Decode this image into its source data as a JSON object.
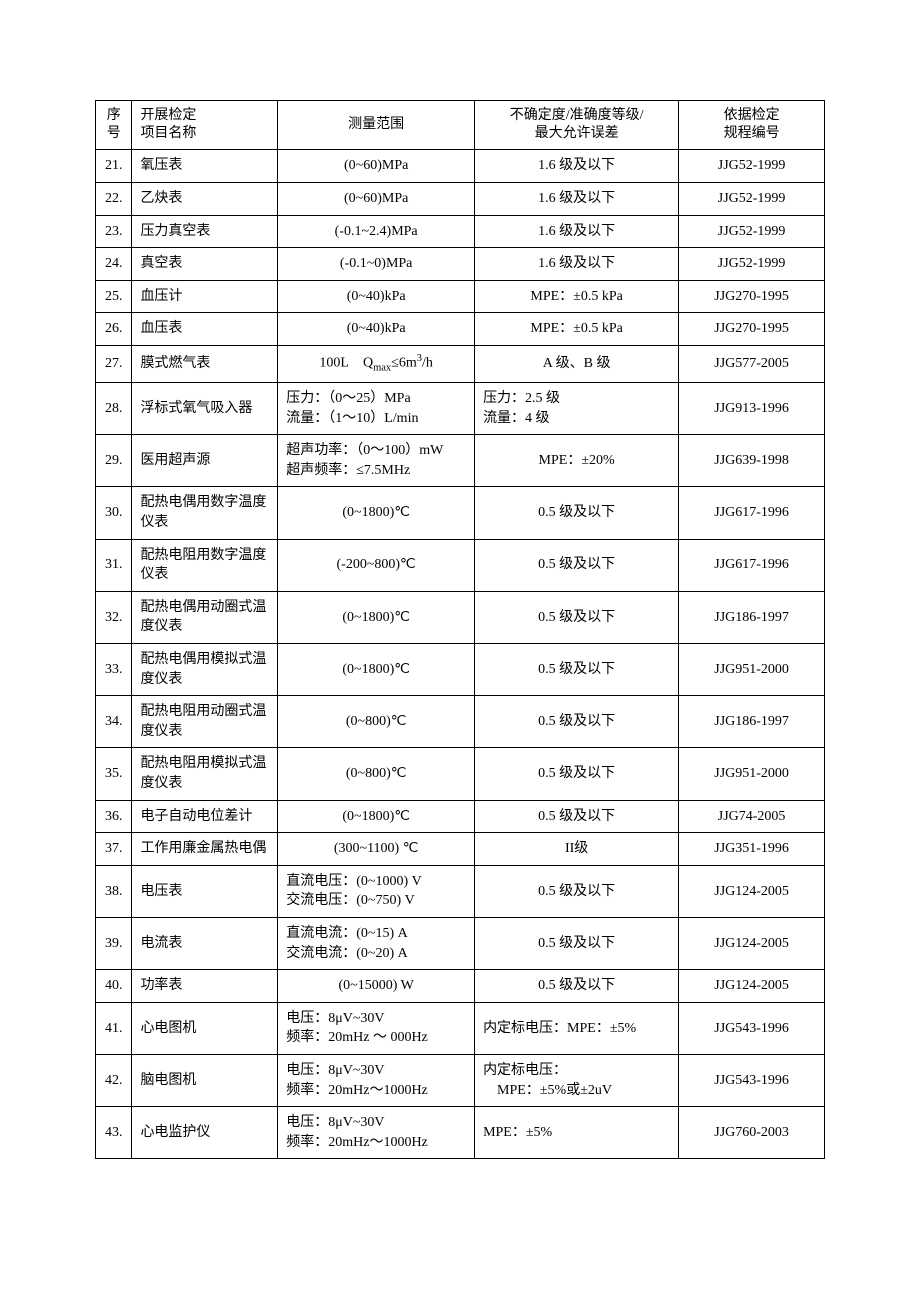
{
  "table": {
    "headers": {
      "seq": "序号",
      "name": "开展检定\n项目名称",
      "range": "测量范围",
      "accuracy": "不确定度/准确度等级/\n最大允许误差",
      "standard": "依据检定\n规程编号"
    },
    "rows": [
      {
        "seq": "21.",
        "name": "氧压表",
        "range": "(0~60)MPa",
        "range_align": "center",
        "accuracy": "1.6 级及以下",
        "accuracy_align": "center",
        "standard": "JJG52-1999"
      },
      {
        "seq": "22.",
        "name": "乙炔表",
        "range": "(0~60)MPa",
        "range_align": "center",
        "accuracy": "1.6 级及以下",
        "accuracy_align": "center",
        "standard": "JJG52-1999"
      },
      {
        "seq": "23.",
        "name": "压力真空表",
        "range": "(-0.1~2.4)MPa",
        "range_align": "center",
        "accuracy": "1.6 级及以下",
        "accuracy_align": "center",
        "standard": "JJG52-1999"
      },
      {
        "seq": "24.",
        "name": "真空表",
        "range": "(-0.1~0)MPa",
        "range_align": "center",
        "accuracy": "1.6 级及以下",
        "accuracy_align": "center",
        "standard": "JJG52-1999"
      },
      {
        "seq": "25.",
        "name": "血压计",
        "range": "(0~40)kPa",
        "range_align": "center",
        "accuracy": "MPE：±0.5 kPa",
        "accuracy_align": "center",
        "standard": "JJG270-1995"
      },
      {
        "seq": "26.",
        "name": "血压表",
        "range": "(0~40)kPa",
        "range_align": "center",
        "accuracy": "MPE：±0.5 kPa",
        "accuracy_align": "center",
        "standard": "JJG270-1995"
      },
      {
        "seq": "27.",
        "name": "膜式燃气表",
        "range": "100L　　Qmax≤6m³/h",
        "range_align": "center",
        "accuracy": "A 级、B 级",
        "accuracy_align": "center",
        "standard": "JJG577-2005",
        "has_sub": true
      },
      {
        "seq": "28.",
        "name": "浮标式氧气吸入器",
        "range": "压力：（0～25）MPa\n流量：（1～10）L/min",
        "range_align": "left",
        "accuracy": "压力：2.5 级\n流量：4 级",
        "accuracy_align": "left",
        "standard": "JJG913-1996"
      },
      {
        "seq": "29.",
        "name": "医用超声源",
        "range": "超声功率：（0～100）mW\n超声频率：≤7.5MHz",
        "range_align": "left",
        "accuracy": "MPE：±20%",
        "accuracy_align": "center",
        "standard": "JJG639-1998"
      },
      {
        "seq": "30.",
        "name": "配热电偶用数字温度仪表",
        "range": "(0~1800)℃",
        "range_align": "center",
        "accuracy": "0.5 级及以下",
        "accuracy_align": "center",
        "standard": "JJG617-1996"
      },
      {
        "seq": "31.",
        "name": "配热电阻用数字温度仪表",
        "range": "(-200~800)℃",
        "range_align": "center",
        "accuracy": "0.5 级及以下",
        "accuracy_align": "center",
        "standard": "JJG617-1996"
      },
      {
        "seq": "32.",
        "name": "配热电偶用动圈式温度仪表",
        "range": "(0~1800)℃",
        "range_align": "center",
        "accuracy": "0.5 级及以下",
        "accuracy_align": "center",
        "standard": "JJG186-1997"
      },
      {
        "seq": "33.",
        "name": "配热电偶用模拟式温度仪表",
        "range": "(0~1800)℃",
        "range_align": "center",
        "accuracy": "0.5 级及以下",
        "accuracy_align": "center",
        "standard": "JJG951-2000"
      },
      {
        "seq": "34.",
        "name": "配热电阻用动圈式温度仪表",
        "range": "(0~800)℃",
        "range_align": "center",
        "accuracy": "0.5 级及以下",
        "accuracy_align": "center",
        "standard": "JJG186-1997"
      },
      {
        "seq": "35.",
        "name": "配热电阻用模拟式温度仪表",
        "range": "(0~800)℃",
        "range_align": "center",
        "accuracy": "0.5 级及以下",
        "accuracy_align": "center",
        "standard": "JJG951-2000"
      },
      {
        "seq": "36.",
        "name": "电子自动电位差计",
        "range": "(0~1800)℃",
        "range_align": "center",
        "accuracy": "0.5 级及以下",
        "accuracy_align": "center",
        "standard": "JJG74-2005"
      },
      {
        "seq": "37.",
        "name": "工作用廉金属热电偶",
        "range": "(300~1100) ℃",
        "range_align": "center",
        "accuracy": "II级",
        "accuracy_align": "center",
        "standard": "JJG351-1996"
      },
      {
        "seq": "38.",
        "name": "电压表",
        "range": "直流电压：(0~1000) V\n交流电压：(0~750) V",
        "range_align": "left",
        "accuracy": "0.5 级及以下",
        "accuracy_align": "center",
        "standard": "JJG124-2005"
      },
      {
        "seq": "39.",
        "name": "电流表",
        "range": "直流电流：(0~15) A\n交流电流：(0~20) A",
        "range_align": "left",
        "accuracy": "0.5 级及以下",
        "accuracy_align": "center",
        "standard": "JJG124-2005"
      },
      {
        "seq": "40.",
        "name": "功率表",
        "range": "(0~15000) W",
        "range_align": "center",
        "accuracy": "0.5 级及以下",
        "accuracy_align": "center",
        "standard": "JJG124-2005"
      },
      {
        "seq": "41.",
        "name": "心电图机",
        "range": "电压：8μV~30V\n频率：20mHz ～ 000Hz",
        "range_align": "left",
        "accuracy": "内定标电压：MPE：±5%",
        "accuracy_align": "left",
        "standard": "JJG543-1996"
      },
      {
        "seq": "42.",
        "name": "脑电图机",
        "range": "电压：8μV~30V\n频率：20mHz～1000Hz",
        "range_align": "left",
        "accuracy": "内定标电压：\n　MPE：±5%或±2uV",
        "accuracy_align": "left",
        "standard": "JJG543-1996"
      },
      {
        "seq": "43.",
        "name": "心电监护仪",
        "range": "电压：8μV~30V\n频率：20mHz～1000Hz",
        "range_align": "left",
        "accuracy": "MPE：±5%",
        "accuracy_align": "left",
        "standard": "JJG760-2003"
      }
    ],
    "styling": {
      "border_color": "#000000",
      "background_color": "#ffffff",
      "text_color": "#000000",
      "font_size": 14,
      "font_family": "SimSun",
      "col_widths_pct": [
        5,
        20,
        27,
        28,
        20
      ]
    }
  }
}
